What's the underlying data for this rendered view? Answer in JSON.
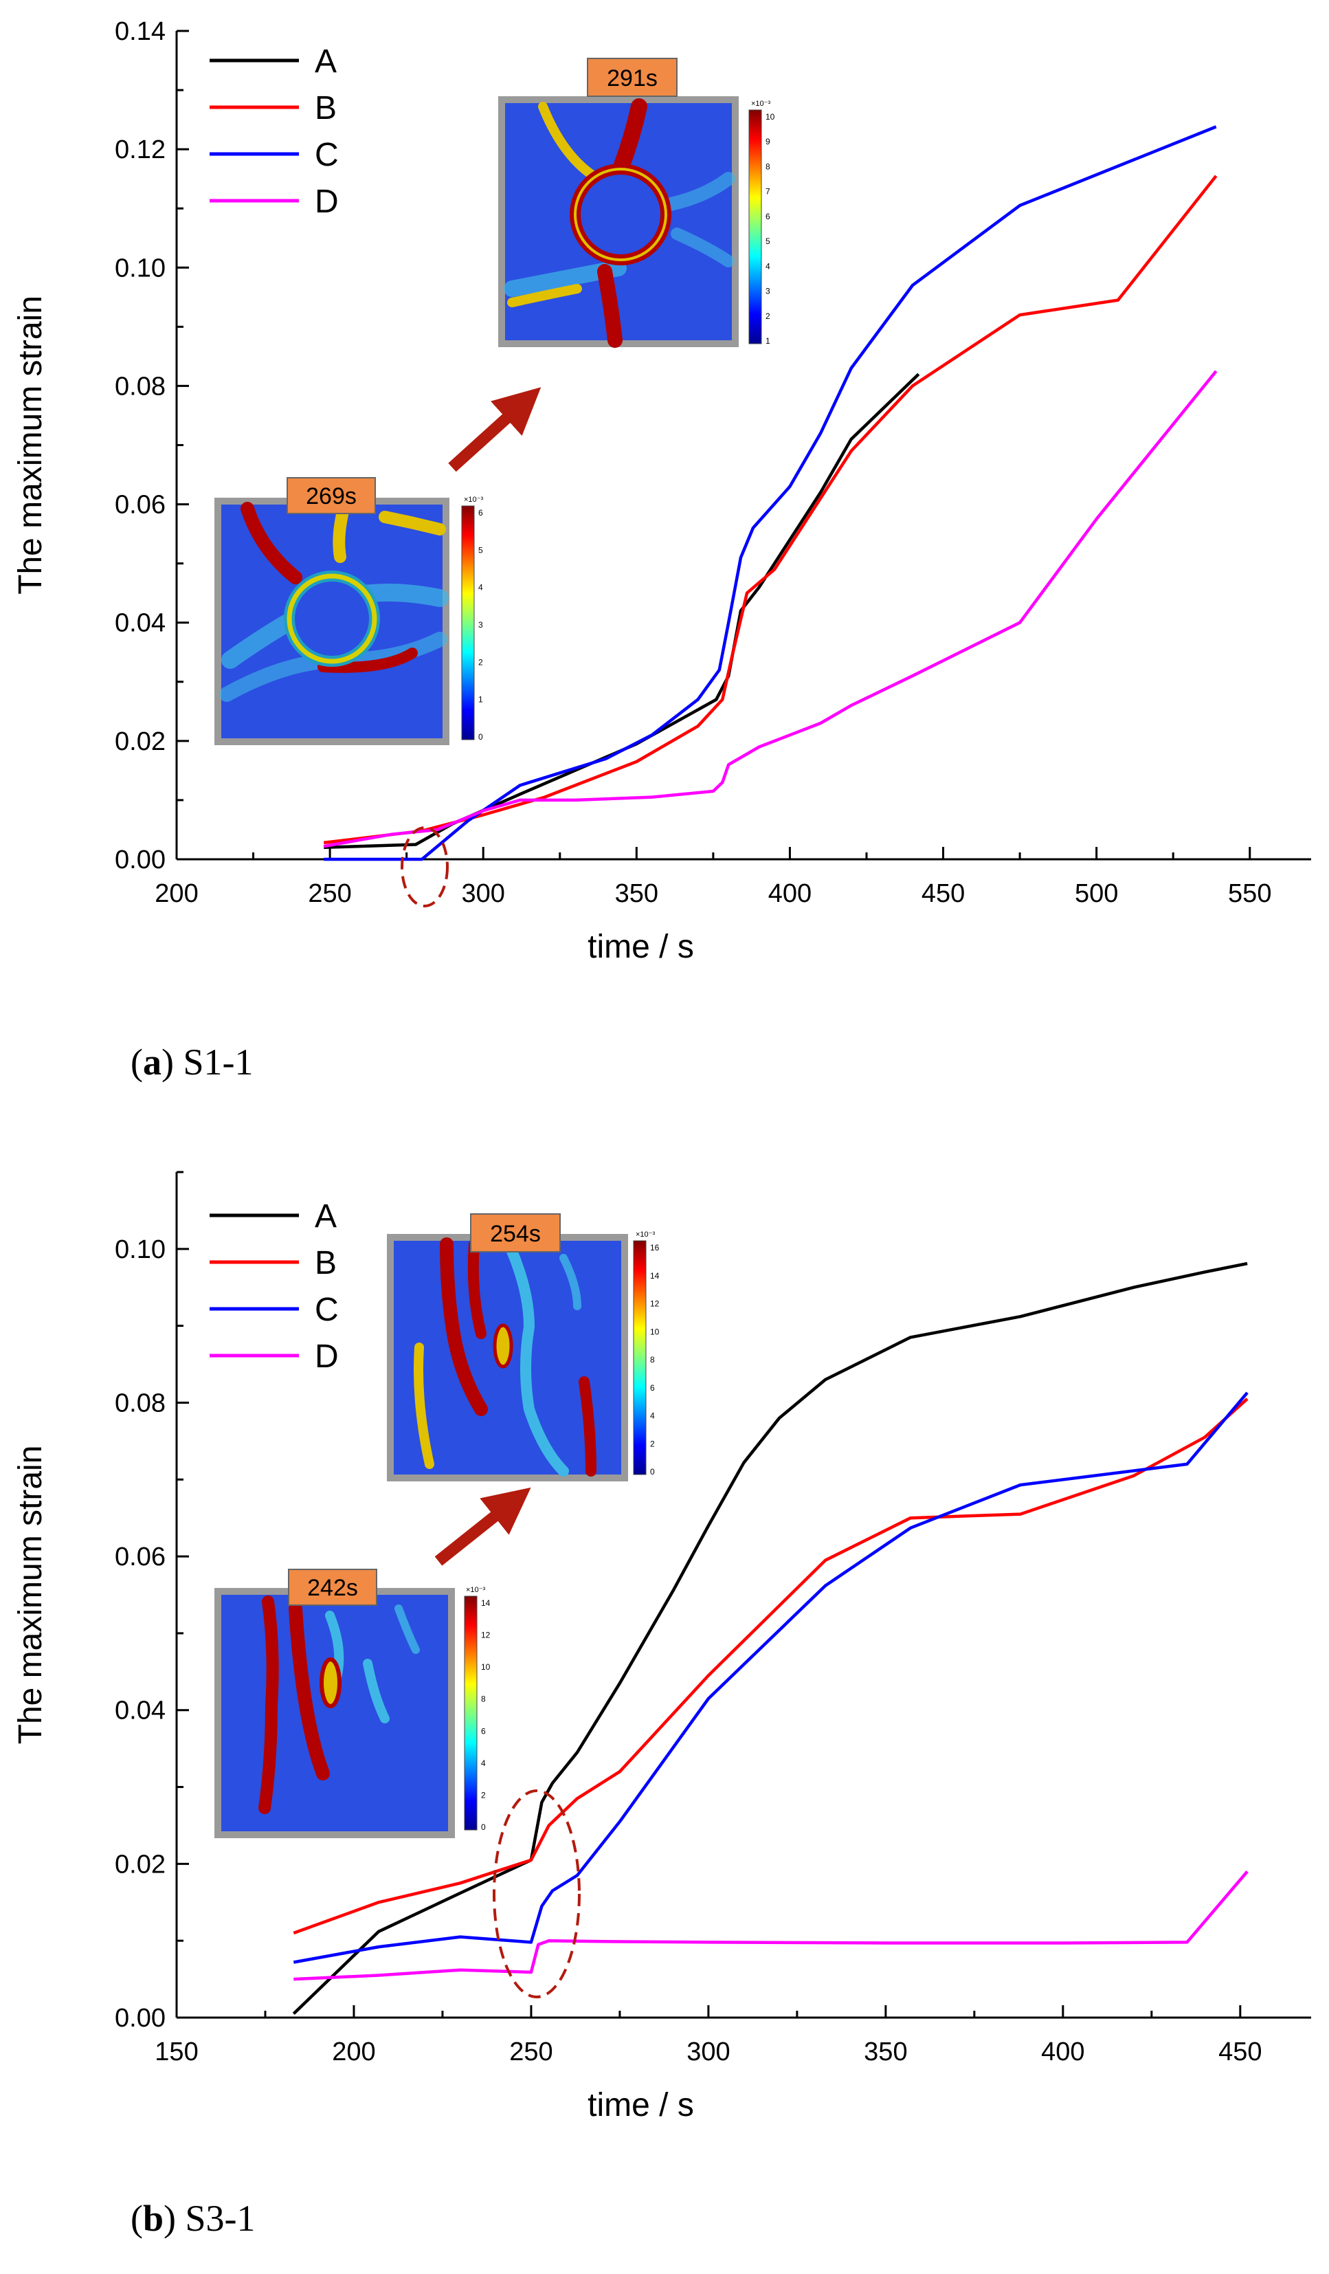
{
  "chart_data": [
    {
      "type": "line",
      "caption_letter": "a",
      "caption_text": " S1-1",
      "xlabel": "time / s",
      "ylabel": "The maximum strain",
      "xlim": [
        200,
        570
      ],
      "ylim": [
        0,
        0.14
      ],
      "xticks": [
        200,
        250,
        300,
        350,
        400,
        450,
        500,
        550
      ],
      "yticks": [
        0,
        0.02,
        0.04,
        0.06,
        0.08,
        0.1,
        0.12,
        0.14
      ],
      "ytick_labels": [
        "0.00",
        "0.02",
        "0.04",
        "0.06",
        "0.08",
        "0.10",
        "0.12",
        "0.14"
      ],
      "legend": "top-left",
      "series": [
        {
          "name": "A",
          "color": "#000000",
          "x": [
            248,
            278,
            290,
            312,
            350,
            376,
            380,
            384,
            390,
            400,
            410,
            420,
            430,
            442
          ],
          "y": [
            0.002,
            0.0025,
            0.006,
            0.011,
            0.0195,
            0.027,
            0.031,
            0.042,
            0.046,
            0.054,
            0.062,
            0.071,
            0.076,
            0.082
          ]
        },
        {
          "name": "B",
          "color": "#ff0000",
          "x": [
            248,
            280,
            300,
            320,
            350,
            370,
            378,
            381,
            386,
            395,
            405,
            420,
            440,
            475,
            507,
            539
          ],
          "y": [
            0.0028,
            0.0048,
            0.0075,
            0.0105,
            0.0165,
            0.0225,
            0.027,
            0.034,
            0.045,
            0.049,
            0.057,
            0.069,
            0.08,
            0.092,
            0.0945,
            0.1155
          ]
        },
        {
          "name": "C",
          "color": "#0000ff",
          "x": [
            248,
            280,
            295,
            312,
            340,
            355,
            370,
            377,
            380,
            384,
            388,
            400,
            410,
            420,
            440,
            475,
            539
          ],
          "y": [
            0.0,
            0.0,
            0.0065,
            0.0125,
            0.017,
            0.021,
            0.027,
            0.032,
            0.04,
            0.051,
            0.056,
            0.063,
            0.072,
            0.083,
            0.097,
            0.1105,
            0.1238
          ]
        },
        {
          "name": "D",
          "color": "#ff00ff",
          "x": [
            248,
            270,
            285,
            300,
            312,
            330,
            355,
            375,
            378,
            380,
            390,
            410,
            420,
            440,
            475,
            500,
            539
          ],
          "y": [
            0.0022,
            0.0042,
            0.005,
            0.0082,
            0.01,
            0.01,
            0.0105,
            0.0115,
            0.013,
            0.016,
            0.019,
            0.023,
            0.026,
            0.031,
            0.04,
            0.0575,
            0.0825
          ]
        }
      ],
      "insets": [
        {
          "label": "269s",
          "scale_exp": "×10⁻³",
          "scale_ticks": [
            "6",
            "5",
            "4",
            "3",
            "2",
            "1",
            "0"
          ]
        },
        {
          "label": "291s",
          "scale_exp": "×10⁻³",
          "scale_ticks": [
            "10",
            "9",
            "8",
            "7",
            "6",
            "5",
            "4",
            "3",
            "2",
            "1"
          ]
        }
      ]
    },
    {
      "type": "line",
      "caption_letter": "b",
      "caption_text": " S3-1",
      "xlabel": "time / s",
      "ylabel": "The maximum strain",
      "xlim": [
        150,
        470
      ],
      "ylim": [
        0,
        0.11
      ],
      "xticks": [
        150,
        200,
        250,
        300,
        350,
        400,
        450
      ],
      "yticks": [
        0,
        0.02,
        0.04,
        0.06,
        0.08,
        0.1
      ],
      "ytick_labels": [
        "0.00",
        "0.02",
        "0.04",
        "0.06",
        "0.08",
        "0.10"
      ],
      "legend": "top-left",
      "series": [
        {
          "name": "A",
          "color": "#000000",
          "x": [
            183,
            207,
            230,
            250,
            253,
            256,
            263,
            275,
            290,
            300,
            310,
            320,
            333,
            357,
            388,
            420,
            440,
            452
          ],
          "y": [
            0.0005,
            0.0112,
            0.0162,
            0.0205,
            0.028,
            0.0305,
            0.0345,
            0.0435,
            0.0555,
            0.064,
            0.0722,
            0.078,
            0.083,
            0.0885,
            0.0912,
            0.095,
            0.097,
            0.0981
          ]
        },
        {
          "name": "B",
          "color": "#ff0000",
          "x": [
            183,
            207,
            230,
            250,
            255,
            263,
            275,
            300,
            333,
            357,
            388,
            420,
            440,
            452
          ],
          "y": [
            0.011,
            0.015,
            0.0175,
            0.0205,
            0.025,
            0.0285,
            0.032,
            0.0445,
            0.0595,
            0.065,
            0.0655,
            0.0705,
            0.0755,
            0.0805
          ]
        },
        {
          "name": "C",
          "color": "#0000ff",
          "x": [
            183,
            207,
            230,
            250,
            253,
            256,
            263,
            275,
            300,
            333,
            357,
            388,
            435,
            452
          ],
          "y": [
            0.0072,
            0.0092,
            0.0105,
            0.0098,
            0.0145,
            0.0165,
            0.0185,
            0.0255,
            0.0415,
            0.0562,
            0.0637,
            0.0693,
            0.072,
            0.0813
          ]
        },
        {
          "name": "D",
          "color": "#ff00ff",
          "x": [
            183,
            207,
            230,
            250,
            252,
            255,
            270,
            300,
            350,
            400,
            435,
            452
          ],
          "y": [
            0.005,
            0.0055,
            0.0062,
            0.0059,
            0.0095,
            0.01,
            0.0099,
            0.0098,
            0.0097,
            0.0097,
            0.0098,
            0.019
          ]
        }
      ],
      "insets": [
        {
          "label": "242s",
          "scale_exp": "×10⁻³",
          "scale_ticks": [
            "14",
            "12",
            "10",
            "8",
            "6",
            "4",
            "2",
            "0"
          ]
        },
        {
          "label": "254s",
          "scale_exp": "×10⁻³",
          "scale_ticks": [
            "16",
            "14",
            "12",
            "10",
            "8",
            "6",
            "4",
            "2",
            "0"
          ]
        }
      ]
    }
  ]
}
